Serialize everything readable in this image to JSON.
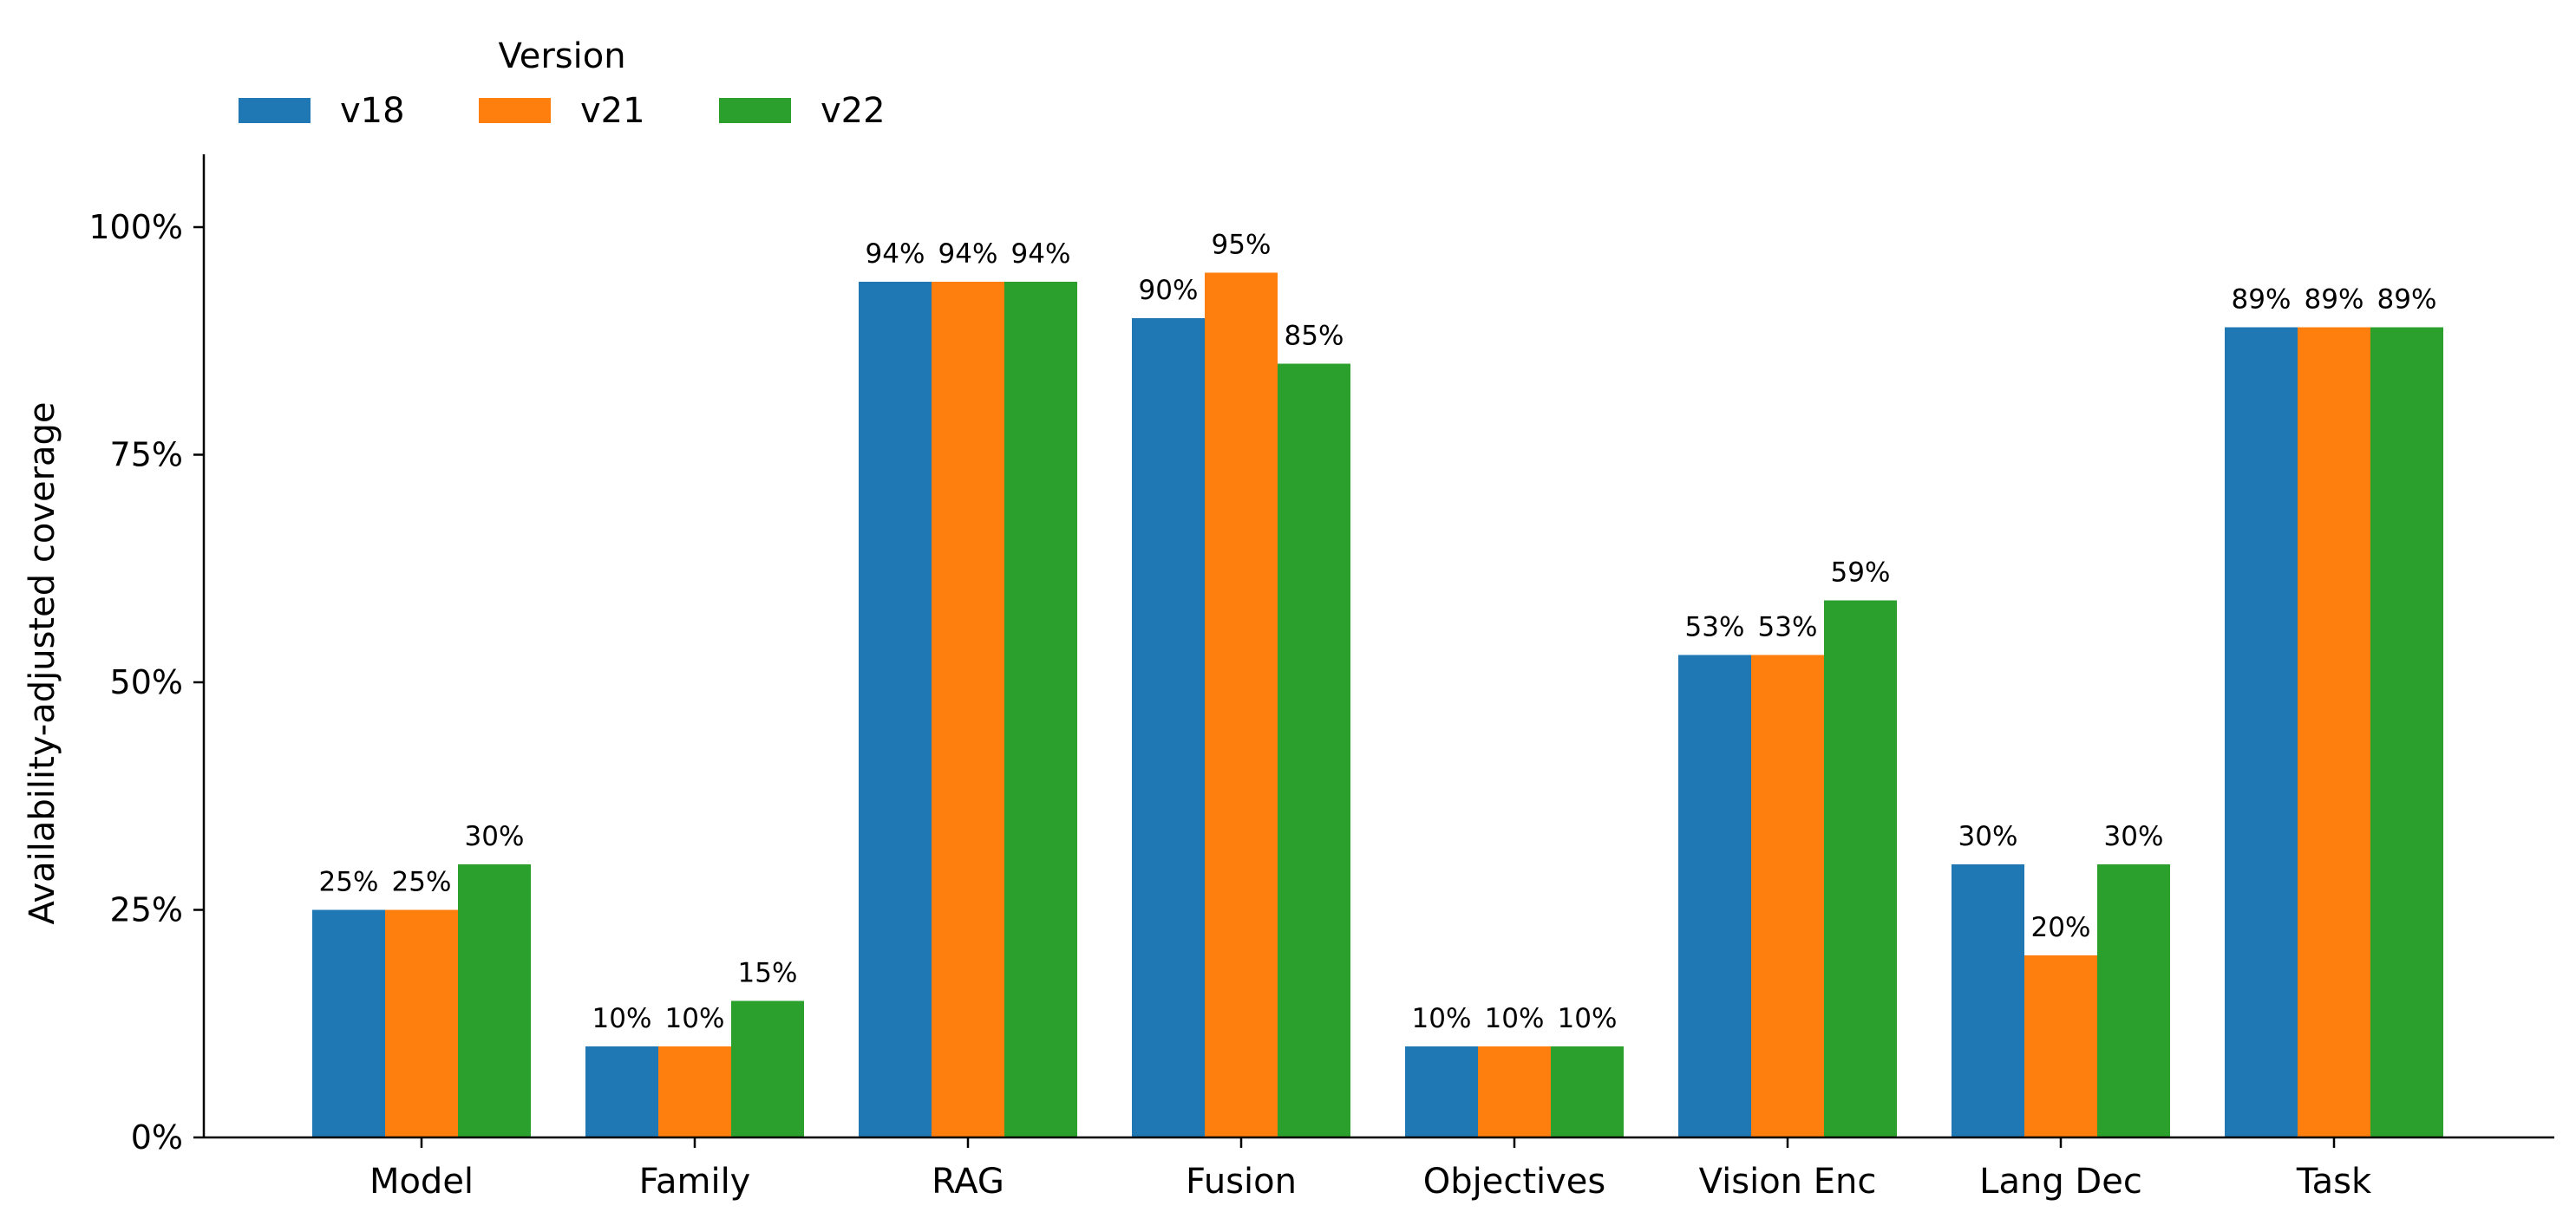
{
  "chart_data": {
    "type": "bar",
    "categories": [
      "Model",
      "Family",
      "RAG",
      "Fusion",
      "Objectives",
      "Vision Enc",
      "Lang Dec",
      "Task"
    ],
    "series": [
      {
        "name": "v18",
        "values": [
          25,
          10,
          94,
          90,
          10,
          53,
          30,
          89
        ],
        "color": "#1f77b4"
      },
      {
        "name": "v21",
        "values": [
          25,
          10,
          94,
          95,
          10,
          53,
          20,
          89
        ],
        "color": "#ff7f0e"
      },
      {
        "name": "v22",
        "values": [
          30,
          15,
          94,
          85,
          10,
          59,
          30,
          89
        ],
        "color": "#2ca02c"
      }
    ],
    "data_labels": [
      [
        "25%",
        "10%",
        "94%",
        "90%",
        "10%",
        "53%",
        "30%",
        "89%"
      ],
      [
        "25%",
        "10%",
        "94%",
        "95%",
        "10%",
        "53%",
        "20%",
        "89%"
      ],
      [
        "30%",
        "15%",
        "94%",
        "85%",
        "10%",
        "59%",
        "30%",
        "89%"
      ]
    ],
    "title": "",
    "xlabel": "",
    "ylabel": "Availability-adjusted coverage",
    "ylim": [
      0,
      108
    ],
    "yticks": [
      0,
      25,
      50,
      75,
      100
    ],
    "ytick_labels": [
      "0%",
      "25%",
      "50%",
      "75%",
      "100%"
    ],
    "grid": false,
    "legend": {
      "title": "Version",
      "placement": "top-left",
      "orientation": "horizontal"
    }
  }
}
